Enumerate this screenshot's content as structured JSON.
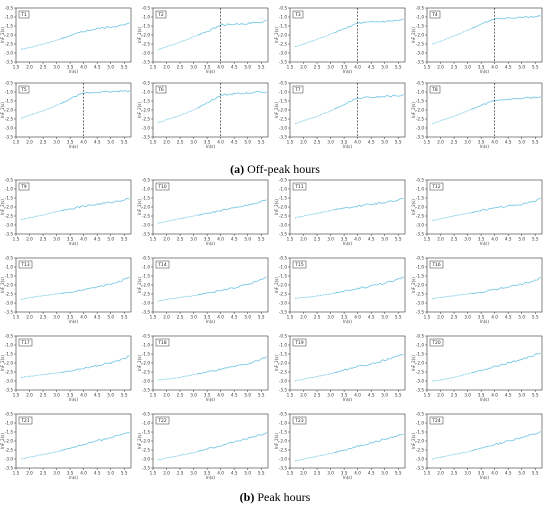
{
  "captions": {
    "a_label": "(a)",
    "a_text": " Off-peak hours",
    "b_label": "(b)",
    "b_text": " Peak hours"
  },
  "style": {
    "line_color": "#6fc5e3",
    "marker_color": "#6fc5e3",
    "axis_color": "#333333"
  },
  "chart_data": [
    {
      "panel": "T1",
      "group": "Off-peak hours",
      "type": "line",
      "xlabel": "ln(s)",
      "ylabel": "lnF_2(s)",
      "xlim": [
        1.5,
        5.75
      ],
      "ylim": [
        -3.5,
        -0.5
      ],
      "x": [
        1.7,
        2.0,
        2.5,
        3.0,
        3.5,
        4.0,
        4.5,
        5.0,
        5.5,
        5.7
      ],
      "y": [
        -2.8,
        -2.7,
        -2.5,
        -2.3,
        -2.05,
        -1.8,
        -1.65,
        -1.55,
        -1.45,
        -1.35
      ]
    },
    {
      "panel": "T2",
      "group": "Off-peak hours",
      "type": "line",
      "xlabel": "ln(s)",
      "ylabel": "lnF_2(s)",
      "xlim": [
        1.5,
        5.75
      ],
      "ylim": [
        -3.5,
        -0.5
      ],
      "x": [
        1.7,
        2.0,
        2.5,
        3.0,
        3.5,
        4.0,
        4.5,
        5.0,
        5.5,
        5.7
      ],
      "y": [
        -2.8,
        -2.65,
        -2.4,
        -2.1,
        -1.8,
        -1.45,
        -1.4,
        -1.35,
        -1.3,
        -1.2
      ],
      "vline": 4.0
    },
    {
      "panel": "T3",
      "group": "Off-peak hours",
      "type": "line",
      "xlabel": "ln(s)",
      "ylabel": "lnF_2(s)",
      "xlim": [
        1.5,
        5.75
      ],
      "ylim": [
        -3.5,
        -0.5
      ],
      "x": [
        1.7,
        2.0,
        2.5,
        3.0,
        3.5,
        4.0,
        4.5,
        5.0,
        5.5,
        5.7
      ],
      "y": [
        -2.65,
        -2.5,
        -2.25,
        -1.95,
        -1.65,
        -1.35,
        -1.3,
        -1.25,
        -1.2,
        -1.15
      ],
      "vline": 4.0
    },
    {
      "panel": "T4",
      "group": "Off-peak hours",
      "type": "line",
      "xlabel": "ln(s)",
      "ylabel": "lnF_2(s)",
      "xlim": [
        1.5,
        5.75
      ],
      "ylim": [
        -3.5,
        -0.5
      ],
      "x": [
        1.7,
        2.0,
        2.5,
        3.0,
        3.5,
        4.0,
        4.5,
        5.0,
        5.5,
        5.7
      ],
      "y": [
        -2.5,
        -2.35,
        -2.05,
        -1.75,
        -1.4,
        -1.1,
        -1.05,
        -1.0,
        -0.98,
        -0.95
      ],
      "vline": 4.0
    },
    {
      "panel": "T5",
      "group": "Off-peak hours",
      "type": "line",
      "xlabel": "ln(s)",
      "ylabel": "lnF_2(s)",
      "xlim": [
        1.5,
        5.75
      ],
      "ylim": [
        -3.5,
        -0.5
      ],
      "x": [
        1.7,
        2.0,
        2.5,
        3.0,
        3.5,
        4.0,
        4.5,
        5.0,
        5.5,
        5.7
      ],
      "y": [
        -2.45,
        -2.3,
        -2.05,
        -1.75,
        -1.4,
        -1.05,
        -1.0,
        -0.98,
        -0.95,
        -0.95
      ],
      "vline": 4.0
    },
    {
      "panel": "T6",
      "group": "Off-peak hours",
      "type": "line",
      "xlabel": "ln(s)",
      "ylabel": "lnF_2(s)",
      "xlim": [
        1.5,
        5.75
      ],
      "ylim": [
        -3.5,
        -0.5
      ],
      "x": [
        1.7,
        2.0,
        2.5,
        3.0,
        3.5,
        4.0,
        4.5,
        5.0,
        5.5,
        5.7
      ],
      "y": [
        -2.7,
        -2.55,
        -2.3,
        -2.0,
        -1.6,
        -1.2,
        -1.1,
        -1.05,
        -1.0,
        -1.0
      ],
      "vline": 4.0
    },
    {
      "panel": "T7",
      "group": "Off-peak hours",
      "type": "line",
      "xlabel": "ln(s)",
      "ylabel": "lnF_2(s)",
      "xlim": [
        1.5,
        5.75
      ],
      "ylim": [
        -3.5,
        -0.5
      ],
      "x": [
        1.7,
        2.0,
        2.5,
        3.0,
        3.5,
        4.0,
        4.5,
        5.0,
        5.5,
        5.7
      ],
      "y": [
        -2.75,
        -2.6,
        -2.35,
        -2.05,
        -1.7,
        -1.35,
        -1.3,
        -1.25,
        -1.2,
        -1.15
      ],
      "vline": 4.0
    },
    {
      "panel": "T8",
      "group": "Off-peak hours",
      "type": "line",
      "xlabel": "ln(s)",
      "ylabel": "lnF_2(s)",
      "xlim": [
        1.5,
        5.75
      ],
      "ylim": [
        -3.5,
        -0.5
      ],
      "x": [
        1.7,
        2.0,
        2.5,
        3.0,
        3.5,
        4.0,
        4.5,
        5.0,
        5.5,
        5.7
      ],
      "y": [
        -2.75,
        -2.6,
        -2.35,
        -2.05,
        -1.75,
        -1.45,
        -1.4,
        -1.35,
        -1.3,
        -1.25
      ],
      "vline": 4.0
    },
    {
      "panel": "T9",
      "group": "Peak hours",
      "type": "line",
      "xlabel": "ln(s)",
      "ylabel": "lnF_2(s)",
      "xlim": [
        1.5,
        5.75
      ],
      "ylim": [
        -3.5,
        -0.5
      ],
      "x": [
        1.7,
        2.0,
        2.5,
        3.0,
        3.5,
        4.0,
        4.5,
        5.0,
        5.5,
        5.7
      ],
      "y": [
        -2.7,
        -2.6,
        -2.45,
        -2.25,
        -2.1,
        -1.95,
        -1.85,
        -1.75,
        -1.6,
        -1.5
      ]
    },
    {
      "panel": "T10",
      "group": "Peak hours",
      "type": "line",
      "xlabel": "ln(s)",
      "ylabel": "lnF_2(s)",
      "xlim": [
        1.5,
        5.75
      ],
      "ylim": [
        -3.5,
        -0.5
      ],
      "x": [
        1.7,
        2.0,
        2.5,
        3.0,
        3.5,
        4.0,
        4.5,
        5.0,
        5.5,
        5.7
      ],
      "y": [
        -2.9,
        -2.8,
        -2.65,
        -2.5,
        -2.35,
        -2.2,
        -2.05,
        -1.9,
        -1.7,
        -1.6
      ]
    },
    {
      "panel": "T11",
      "group": "Peak hours",
      "type": "line",
      "xlabel": "ln(s)",
      "ylabel": "lnF_2(s)",
      "xlim": [
        1.5,
        5.75
      ],
      "ylim": [
        -3.5,
        -0.5
      ],
      "x": [
        1.7,
        2.0,
        2.5,
        3.0,
        3.5,
        4.0,
        4.5,
        5.0,
        5.5,
        5.7
      ],
      "y": [
        -2.6,
        -2.5,
        -2.35,
        -2.2,
        -2.05,
        -1.95,
        -1.85,
        -1.75,
        -1.6,
        -1.5
      ]
    },
    {
      "panel": "T12",
      "group": "Peak hours",
      "type": "line",
      "xlabel": "ln(s)",
      "ylabel": "lnF_2(s)",
      "xlim": [
        1.5,
        5.75
      ],
      "ylim": [
        -3.5,
        -0.5
      ],
      "x": [
        1.7,
        2.0,
        2.5,
        3.0,
        3.5,
        4.0,
        4.5,
        5.0,
        5.5,
        5.7
      ],
      "y": [
        -2.75,
        -2.65,
        -2.5,
        -2.35,
        -2.2,
        -2.05,
        -1.95,
        -1.85,
        -1.65,
        -1.5
      ]
    },
    {
      "panel": "T13",
      "group": "Peak hours",
      "type": "line",
      "xlabel": "ln(s)",
      "ylabel": "lnF_2(s)",
      "xlim": [
        1.5,
        5.75
      ],
      "ylim": [
        -3.5,
        -0.5
      ],
      "x": [
        1.7,
        2.0,
        2.5,
        3.0,
        3.5,
        4.0,
        4.5,
        5.0,
        5.5,
        5.7
      ],
      "y": [
        -2.8,
        -2.7,
        -2.6,
        -2.5,
        -2.4,
        -2.25,
        -2.1,
        -1.95,
        -1.7,
        -1.55
      ]
    },
    {
      "panel": "T14",
      "group": "Peak hours",
      "type": "line",
      "xlabel": "ln(s)",
      "ylabel": "lnF_2(s)",
      "xlim": [
        1.5,
        5.75
      ],
      "ylim": [
        -3.5,
        -0.5
      ],
      "x": [
        1.7,
        2.0,
        2.5,
        3.0,
        3.5,
        4.0,
        4.5,
        5.0,
        5.5,
        5.7
      ],
      "y": [
        -2.9,
        -2.8,
        -2.7,
        -2.6,
        -2.45,
        -2.3,
        -2.15,
        -1.95,
        -1.7,
        -1.55
      ]
    },
    {
      "panel": "T15",
      "group": "Peak hours",
      "type": "line",
      "xlabel": "ln(s)",
      "ylabel": "lnF_2(s)",
      "xlim": [
        1.5,
        5.75
      ],
      "ylim": [
        -3.5,
        -0.5
      ],
      "x": [
        1.7,
        2.0,
        2.5,
        3.0,
        3.5,
        4.0,
        4.5,
        5.0,
        5.5,
        5.7
      ],
      "y": [
        -2.75,
        -2.7,
        -2.6,
        -2.5,
        -2.35,
        -2.2,
        -2.05,
        -1.9,
        -1.7,
        -1.55
      ]
    },
    {
      "panel": "T16",
      "group": "Peak hours",
      "type": "line",
      "xlabel": "ln(s)",
      "ylabel": "lnF_2(s)",
      "xlim": [
        1.5,
        5.75
      ],
      "ylim": [
        -3.5,
        -0.5
      ],
      "x": [
        1.7,
        2.0,
        2.5,
        3.0,
        3.5,
        4.0,
        4.5,
        5.0,
        5.5,
        5.7
      ],
      "y": [
        -2.75,
        -2.7,
        -2.6,
        -2.5,
        -2.4,
        -2.25,
        -2.1,
        -1.95,
        -1.75,
        -1.6
      ]
    },
    {
      "panel": "T17",
      "group": "Peak hours",
      "type": "line",
      "xlabel": "ln(s)",
      "ylabel": "lnF_2(s)",
      "xlim": [
        1.5,
        5.75
      ],
      "ylim": [
        -3.5,
        -0.5
      ],
      "x": [
        1.7,
        2.0,
        2.5,
        3.0,
        3.5,
        4.0,
        4.5,
        5.0,
        5.5,
        5.7
      ],
      "y": [
        -2.8,
        -2.75,
        -2.65,
        -2.55,
        -2.45,
        -2.3,
        -2.15,
        -2.0,
        -1.75,
        -1.6
      ]
    },
    {
      "panel": "T18",
      "group": "Peak hours",
      "type": "line",
      "xlabel": "ln(s)",
      "ylabel": "lnF_2(s)",
      "xlim": [
        1.5,
        5.75
      ],
      "ylim": [
        -3.5,
        -0.5
      ],
      "x": [
        1.7,
        2.0,
        2.5,
        3.0,
        3.5,
        4.0,
        4.5,
        5.0,
        5.5,
        5.7
      ],
      "y": [
        -2.95,
        -2.9,
        -2.8,
        -2.65,
        -2.5,
        -2.35,
        -2.2,
        -2.05,
        -1.8,
        -1.65
      ]
    },
    {
      "panel": "T19",
      "group": "Peak hours",
      "type": "line",
      "xlabel": "ln(s)",
      "ylabel": "lnF_2(s)",
      "xlim": [
        1.5,
        5.75
      ],
      "ylim": [
        -3.5,
        -0.5
      ],
      "x": [
        1.7,
        2.0,
        2.5,
        3.0,
        3.5,
        4.0,
        4.5,
        5.0,
        5.5,
        5.7
      ],
      "y": [
        -3.0,
        -2.9,
        -2.75,
        -2.6,
        -2.4,
        -2.2,
        -2.05,
        -1.85,
        -1.6,
        -1.5
      ]
    },
    {
      "panel": "T20",
      "group": "Peak hours",
      "type": "line",
      "xlabel": "ln(s)",
      "ylabel": "lnF_2(s)",
      "xlim": [
        1.5,
        5.75
      ],
      "ylim": [
        -3.5,
        -0.5
      ],
      "x": [
        1.7,
        2.0,
        2.5,
        3.0,
        3.5,
        4.0,
        4.5,
        5.0,
        5.5,
        5.7
      ],
      "y": [
        -3.0,
        -2.95,
        -2.8,
        -2.6,
        -2.4,
        -2.2,
        -2.0,
        -1.8,
        -1.55,
        -1.45
      ]
    },
    {
      "panel": "T21",
      "group": "Peak hours",
      "type": "line",
      "xlabel": "ln(s)",
      "ylabel": "lnF_2(s)",
      "xlim": [
        1.5,
        5.75
      ],
      "ylim": [
        -3.5,
        -0.5
      ],
      "x": [
        1.7,
        2.0,
        2.5,
        3.0,
        3.5,
        4.0,
        4.5,
        5.0,
        5.5,
        5.7
      ],
      "y": [
        -3.0,
        -2.9,
        -2.75,
        -2.6,
        -2.4,
        -2.2,
        -2.0,
        -1.8,
        -1.6,
        -1.5
      ]
    },
    {
      "panel": "T22",
      "group": "Peak hours",
      "type": "line",
      "xlabel": "ln(s)",
      "ylabel": "lnF_2(s)",
      "xlim": [
        1.5,
        5.75
      ],
      "ylim": [
        -3.5,
        -0.5
      ],
      "x": [
        1.7,
        2.0,
        2.5,
        3.0,
        3.5,
        4.0,
        4.5,
        5.0,
        5.5,
        5.7
      ],
      "y": [
        -3.05,
        -2.95,
        -2.8,
        -2.65,
        -2.45,
        -2.25,
        -2.05,
        -1.85,
        -1.65,
        -1.55
      ]
    },
    {
      "panel": "T23",
      "group": "Peak hours",
      "type": "line",
      "xlabel": "ln(s)",
      "ylabel": "lnF_2(s)",
      "xlim": [
        1.5,
        5.75
      ],
      "ylim": [
        -3.5,
        -0.5
      ],
      "x": [
        1.7,
        2.0,
        2.5,
        3.0,
        3.5,
        4.0,
        4.5,
        5.0,
        5.5,
        5.7
      ],
      "y": [
        -3.1,
        -3.0,
        -2.85,
        -2.7,
        -2.5,
        -2.3,
        -2.1,
        -1.9,
        -1.7,
        -1.6
      ]
    },
    {
      "panel": "T24",
      "group": "Peak hours",
      "type": "line",
      "xlabel": "ln(s)",
      "ylabel": "lnF_2(s)",
      "xlim": [
        1.5,
        5.75
      ],
      "ylim": [
        -3.5,
        -0.5
      ],
      "x": [
        1.7,
        2.0,
        2.5,
        3.0,
        3.5,
        4.0,
        4.5,
        5.0,
        5.5,
        5.7
      ],
      "y": [
        -3.0,
        -2.9,
        -2.75,
        -2.6,
        -2.4,
        -2.2,
        -2.0,
        -1.8,
        -1.6,
        -1.5
      ]
    }
  ]
}
